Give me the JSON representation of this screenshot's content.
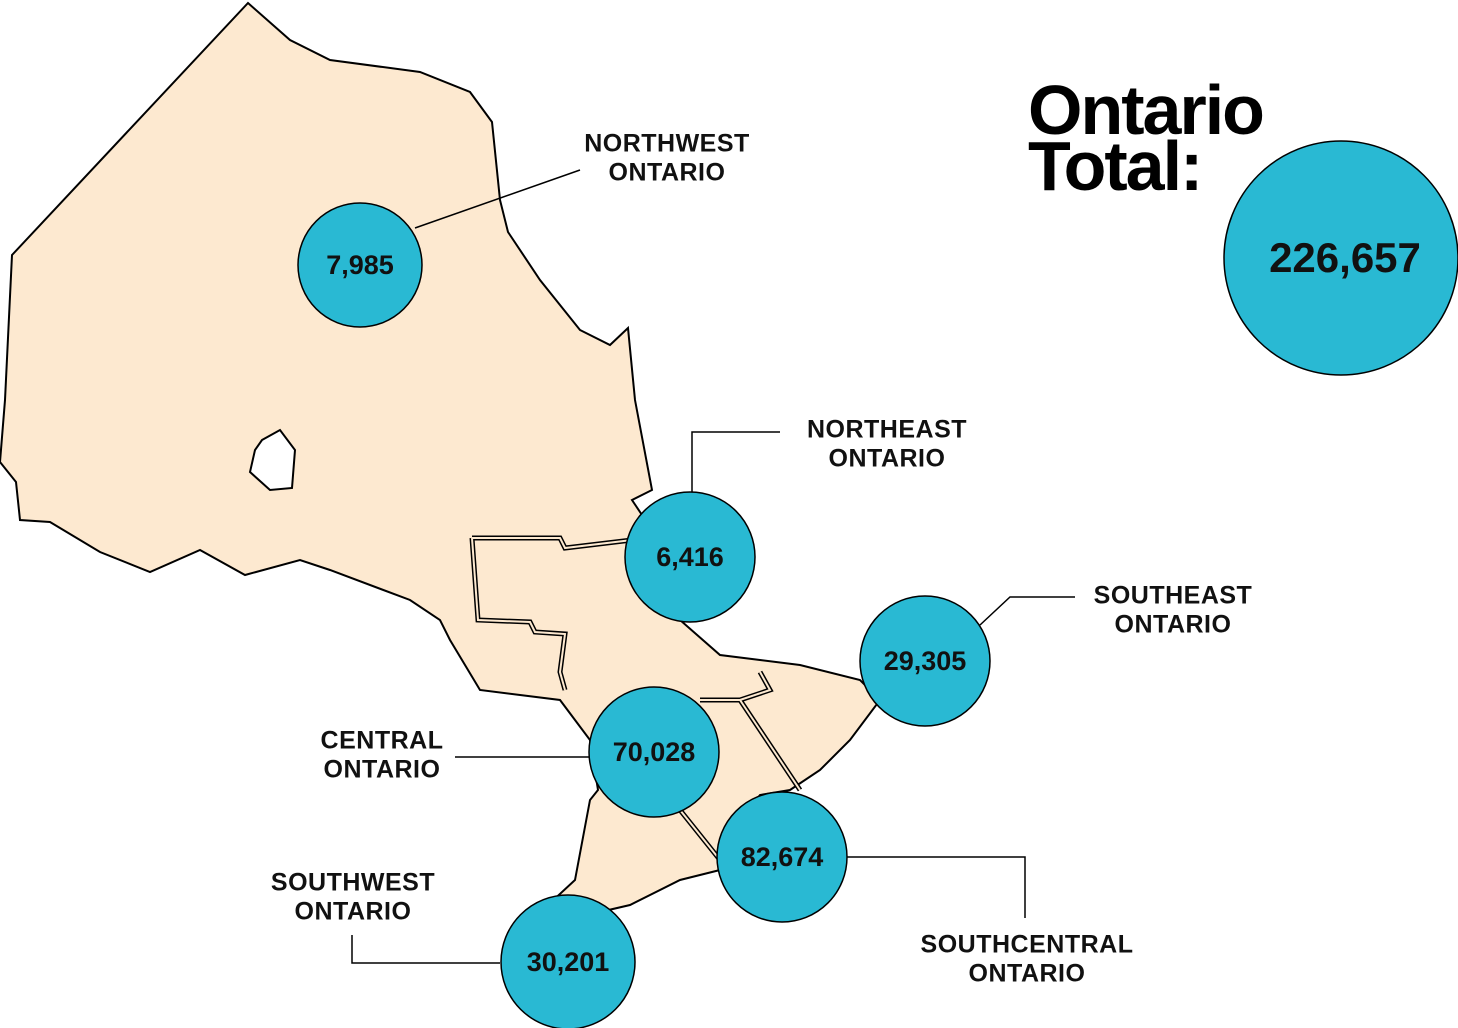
{
  "title_lines": [
    "Ontario",
    "Total:"
  ],
  "total": "226,657",
  "regions": [
    {
      "label_lines": [
        "NORTHWEST",
        "ONTARIO"
      ],
      "value": "7,985"
    },
    {
      "label_lines": [
        "NORTHEAST",
        "ONTARIO"
      ],
      "value": "6,416"
    },
    {
      "label_lines": [
        "SOUTHEAST",
        "ONTARIO"
      ],
      "value": "29,305"
    },
    {
      "label_lines": [
        "CENTRAL",
        "ONTARIO"
      ],
      "value": "70,028"
    },
    {
      "label_lines": [
        "SOUTHCENTRAL",
        "ONTARIO"
      ],
      "value": "82,674"
    },
    {
      "label_lines": [
        "SOUTHWEST",
        "ONTARIO"
      ],
      "value": "30,201"
    }
  ]
}
